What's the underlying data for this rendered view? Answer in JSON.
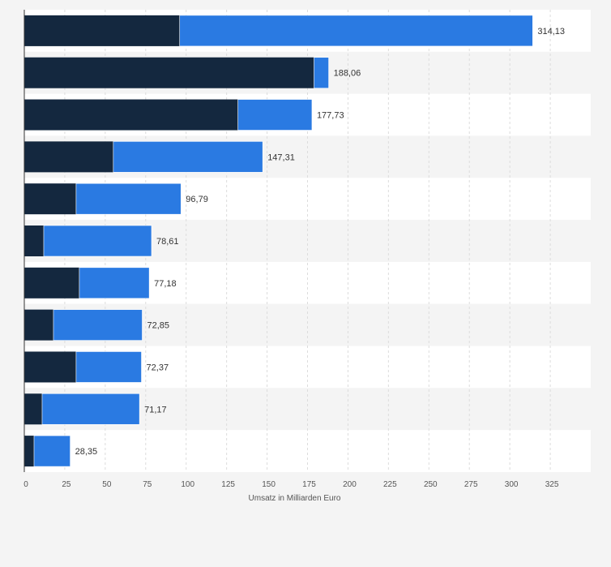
{
  "chart_data": {
    "type": "bar",
    "orientation": "horizontal",
    "stacked": true,
    "xlabel": "Umsatz in Milliarden Euro",
    "xlim": [
      0,
      350
    ],
    "x_ticks": [
      "0",
      "25",
      "50",
      "75",
      "100",
      "125",
      "150",
      "175",
      "200",
      "225",
      "250",
      "275",
      "300",
      "325"
    ],
    "grid": true,
    "colors": {
      "series1": "#14283f",
      "series2": "#2a7ae2"
    },
    "totals": [
      "314,13",
      "188,06",
      "177,73",
      "147,31",
      "96,79",
      "78,61",
      "77,18",
      "72,85",
      "72,37",
      "71,17",
      "28,35"
    ],
    "series": [
      {
        "values": [
          96,
          179,
          132,
          55,
          32,
          12,
          34,
          18,
          32,
          11,
          6
        ]
      },
      {
        "values": [
          218.13,
          9.06,
          45.73,
          92.31,
          64.79,
          66.61,
          43.18,
          54.85,
          40.37,
          60.17,
          22.35
        ]
      }
    ]
  }
}
